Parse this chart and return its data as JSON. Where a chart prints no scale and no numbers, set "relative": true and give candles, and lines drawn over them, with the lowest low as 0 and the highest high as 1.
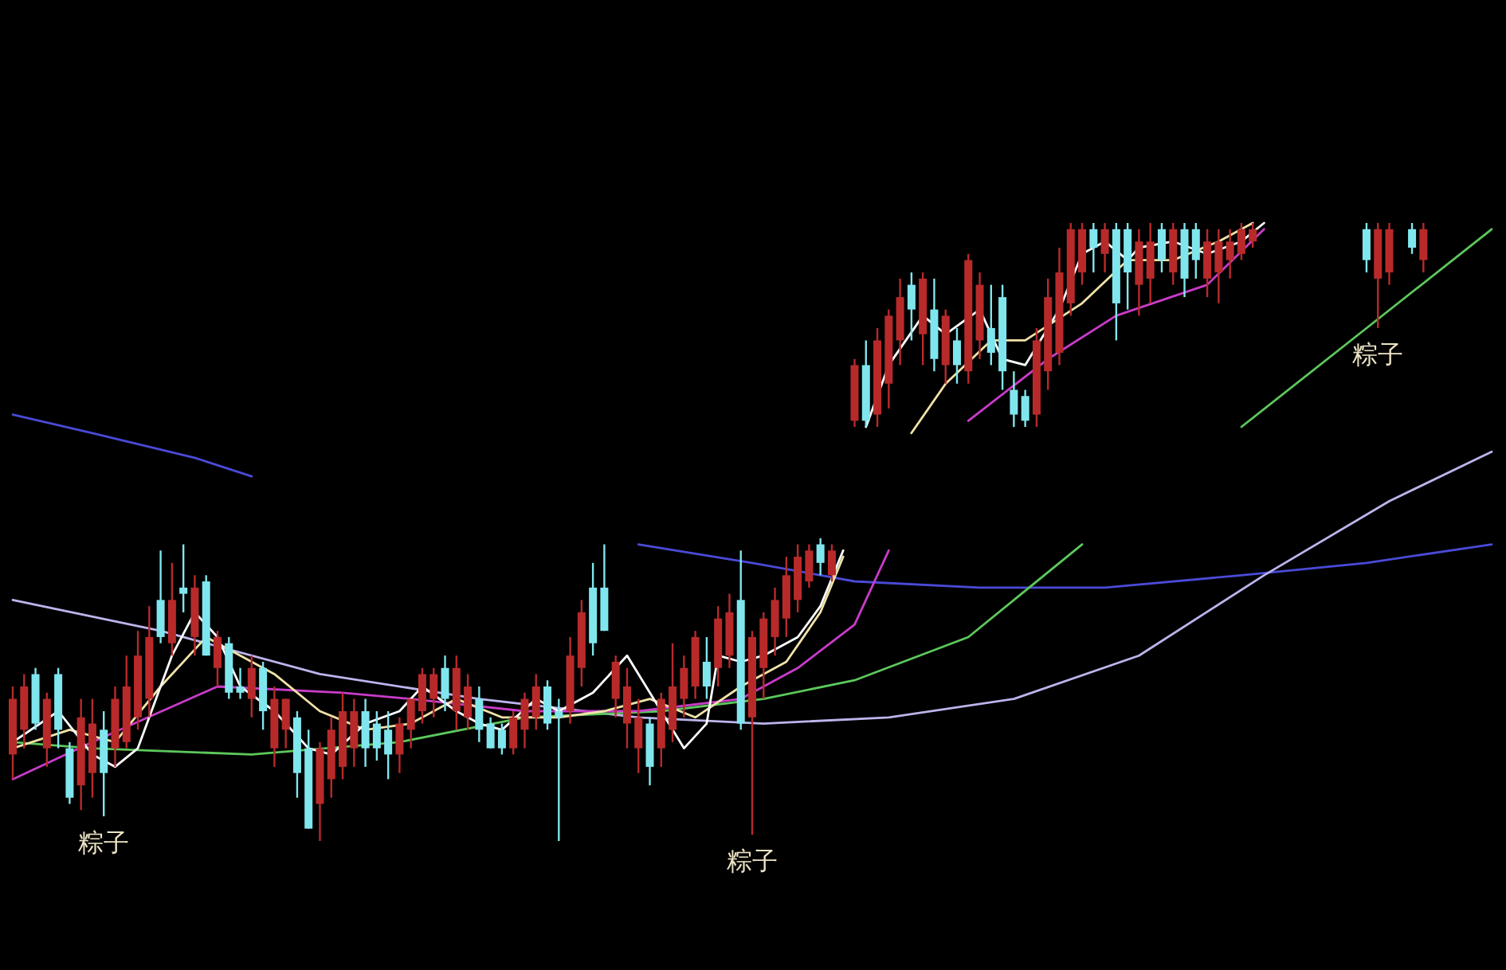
{
  "chart_data": {
    "type": "candlestick",
    "relative": true,
    "categories": [
      null,
      null,
      null,
      null,
      null,
      null,
      null,
      null,
      null,
      null,
      null,
      null,
      null,
      null,
      null,
      null,
      null,
      null,
      null,
      null,
      null,
      null,
      null,
      null,
      null,
      null,
      null,
      null,
      null,
      null,
      null,
      null,
      null,
      null,
      null,
      null,
      null,
      null,
      null,
      null,
      null,
      null,
      null,
      null,
      null,
      null,
      null,
      null,
      null,
      null,
      null,
      null,
      null,
      null,
      null,
      null,
      null,
      null,
      null,
      null,
      null,
      null,
      null,
      null,
      null,
      null,
      null,
      null,
      null,
      null,
      null,
      null,
      null,
      null,
      null,
      null,
      null,
      null,
      null,
      null,
      null,
      null,
      null,
      null,
      null,
      null,
      null,
      null,
      null,
      null,
      null,
      null,
      null,
      null,
      null,
      null,
      null,
      null,
      null,
      null,
      null,
      null,
      null,
      null,
      null,
      null,
      null,
      null,
      null,
      null,
      null,
      null,
      null,
      null,
      null,
      null,
      null,
      null,
      null,
      null,
      null,
      null,
      null,
      null,
      null,
      null,
      null,
      null,
      null,
      null,
      null
    ],
    "ohlc": [
      [
        0.14,
        0.25,
        0.1,
        0.23
      ],
      [
        0.18,
        0.27,
        0.15,
        0.25
      ],
      [
        0.27,
        0.28,
        0.18,
        0.19
      ],
      [
        0.15,
        0.24,
        0.12,
        0.23
      ],
      [
        0.27,
        0.28,
        0.15,
        0.18
      ],
      [
        0.15,
        0.16,
        0.06,
        0.07
      ],
      [
        0.09,
        0.23,
        0.05,
        0.2
      ],
      [
        0.11,
        0.23,
        0.07,
        0.19
      ],
      [
        0.18,
        0.21,
        0.04,
        0.11
      ],
      [
        0.15,
        0.25,
        0.12,
        0.23
      ],
      [
        0.16,
        0.3,
        0.15,
        0.25
      ],
      [
        0.2,
        0.34,
        0.18,
        0.3
      ],
      [
        0.23,
        0.38,
        0.2,
        0.33
      ],
      [
        0.39,
        0.47,
        0.32,
        0.33
      ],
      [
        0.32,
        0.45,
        0.3,
        0.39
      ],
      [
        0.41,
        0.48,
        0.37,
        0.4
      ],
      [
        0.33,
        0.43,
        0.3,
        0.41
      ],
      [
        0.42,
        0.43,
        0.3,
        0.3
      ],
      [
        0.28,
        0.34,
        0.25,
        0.33
      ],
      [
        0.32,
        0.33,
        0.23,
        0.24
      ],
      [
        0.25,
        0.28,
        0.23,
        0.24
      ],
      [
        0.23,
        0.3,
        0.2,
        0.28
      ],
      [
        0.28,
        0.29,
        0.18,
        0.21
      ],
      [
        0.15,
        0.25,
        0.12,
        0.23
      ],
      [
        0.18,
        0.23,
        0.15,
        0.23
      ],
      [
        0.2,
        0.21,
        0.07,
        0.11
      ],
      [
        0.15,
        0.18,
        0.02,
        0.02
      ],
      [
        0.06,
        0.16,
        0,
        0.15
      ],
      [
        0.1,
        0.2,
        0.07,
        0.18
      ],
      [
        0.12,
        0.24,
        0.1,
        0.21
      ],
      [
        0.15,
        0.23,
        0.12,
        0.21
      ],
      [
        0.21,
        0.23,
        0.12,
        0.15
      ],
      [
        0.19,
        0.21,
        0.13,
        0.15
      ],
      [
        0.18,
        0.21,
        0.1,
        0.14
      ],
      [
        0.14,
        0.2,
        0.11,
        0.19
      ],
      [
        0.18,
        0.23,
        0.15,
        0.23
      ],
      [
        0.21,
        0.28,
        0.19,
        0.27
      ],
      [
        0.23,
        0.28,
        0.2,
        0.27
      ],
      [
        0.28,
        0.3,
        0.21,
        0.23
      ],
      [
        0.21,
        0.3,
        0.18,
        0.28
      ],
      [
        0.2,
        0.27,
        0.18,
        0.25
      ],
      [
        0.23,
        0.25,
        0.16,
        0.18
      ],
      [
        0.19,
        0.2,
        0.15,
        0.15
      ],
      [
        0.18,
        0.19,
        0.14,
        0.15
      ],
      [
        0.15,
        0.21,
        0.14,
        0.2
      ],
      [
        0.18,
        0.24,
        0.15,
        0.23
      ],
      [
        0.2,
        0.27,
        0.18,
        0.25
      ],
      [
        0.25,
        0.26,
        0.18,
        0.19
      ],
      [
        0.21,
        0.23,
        0,
        0.2
      ],
      [
        0.21,
        0.33,
        0.19,
        0.3
      ],
      [
        0.28,
        0.39,
        0.25,
        0.37
      ],
      [
        0.41,
        0.45,
        0.3,
        0.32
      ],
      [
        0.41,
        0.48,
        0.34,
        0.34
      ],
      [
        0.23,
        0.3,
        0.2,
        0.29
      ],
      [
        0.19,
        0.28,
        0.15,
        0.25
      ],
      [
        0.15,
        0.23,
        0.11,
        0.2
      ],
      [
        0.19,
        0.2,
        0.09,
        0.12
      ],
      [
        0.15,
        0.24,
        0.12,
        0.23
      ],
      [
        0.18,
        0.32,
        0.16,
        0.25
      ],
      [
        0.23,
        0.3,
        0.2,
        0.28
      ],
      [
        0.25,
        0.34,
        0.23,
        0.33
      ],
      [
        0.29,
        0.33,
        0.23,
        0.25
      ],
      [
        0.28,
        0.38,
        0.25,
        0.36
      ],
      [
        0.3,
        0.4,
        0.28,
        0.37
      ],
      [
        0.39,
        0.47,
        0.18,
        0.19
      ],
      [
        0.2,
        0.34,
        0.01,
        0.33
      ],
      [
        0.28,
        0.37,
        0.23,
        0.36
      ],
      [
        0.33,
        0.41,
        0.3,
        0.39
      ],
      [
        0.36,
        0.46,
        0.33,
        0.43
      ],
      [
        0.39,
        0.48,
        0.37,
        0.46
      ],
      [
        0.42,
        0.48,
        0.41,
        0.47
      ],
      [
        0.48,
        0.49,
        0.43,
        0.45
      ],
      [
        0.43,
        0.48,
        0.42,
        0.47
      ],
      null,
      [
        0.68,
        0.78,
        0.67,
        0.77
      ],
      [
        0.77,
        0.81,
        0.67,
        0.68
      ],
      [
        0.69,
        0.83,
        0.67,
        0.81
      ],
      [
        0.74,
        0.86,
        0.7,
        0.85
      ],
      [
        0.81,
        0.91,
        0.77,
        0.88
      ],
      [
        0.9,
        0.92,
        0.81,
        0.86
      ],
      [
        0.82,
        0.92,
        0.77,
        0.91
      ],
      [
        0.86,
        0.91,
        0.76,
        0.78
      ],
      [
        0.77,
        0.86,
        0.74,
        0.85
      ],
      [
        0.81,
        0.83,
        0.74,
        0.77
      ],
      [
        0.76,
        0.95,
        0.74,
        0.94
      ],
      [
        0.81,
        0.92,
        0.78,
        0.9
      ],
      [
        0.83,
        0.9,
        0.77,
        0.79
      ],
      [
        0.88,
        0.9,
        0.73,
        0.76
      ],
      [
        0.73,
        0.76,
        0.67,
        0.69
      ],
      [
        0.72,
        0.73,
        0.67,
        0.68
      ],
      [
        0.69,
        0.83,
        0.67,
        0.81
      ],
      [
        0.76,
        0.91,
        0.73,
        0.88
      ],
      [
        0.79,
        0.96,
        0.77,
        0.92
      ],
      [
        0.87,
        1,
        0.85,
        0.99
      ],
      [
        0.92,
        1,
        0.9,
        0.99
      ],
      [
        0.99,
        1,
        0.92,
        0.96
      ],
      [
        0.95,
        1,
        0.92,
        0.99
      ],
      [
        0.99,
        1,
        0.81,
        0.87
      ],
      [
        0.99,
        1,
        0.86,
        0.92
      ],
      [
        0.9,
        0.99,
        0.85,
        0.97
      ],
      [
        0.91,
        1,
        0.87,
        0.97
      ],
      [
        0.99,
        1,
        0.92,
        0.94
      ],
      [
        0.92,
        1,
        0.9,
        0.99
      ],
      [
        0.99,
        1,
        0.88,
        0.91
      ],
      [
        0.99,
        1,
        0.91,
        0.94
      ],
      [
        0.91,
        0.99,
        0.88,
        0.97
      ],
      [
        0.92,
        0.99,
        0.87,
        0.97
      ],
      [
        0.94,
        0.99,
        0.91,
        0.97
      ],
      [
        0.95,
        1,
        0.94,
        0.99
      ],
      [
        0.97,
        1,
        0.96,
        0.99
      ],
      null,
      null,
      null,
      null,
      null,
      null,
      null,
      null,
      null,
      [
        0.99,
        1,
        0.92,
        0.94
      ],
      [
        0.91,
        1,
        0.83,
        0.99
      ],
      [
        0.92,
        1,
        0.9,
        0.99
      ],
      null,
      [
        0.99,
        1,
        0.95,
        0.96
      ],
      [
        0.94,
        1,
        0.92,
        0.99
      ],
      null,
      null,
      null,
      null,
      null,
      null
    ],
    "colors": [
      "#b82a2a",
      "#b82a2a",
      "#80e6ee",
      "#b82a2a",
      "#80e6ee",
      "#80e6ee",
      "#b82a2a",
      "#b82a2a",
      "#80e6ee",
      "#b82a2a",
      "#b82a2a",
      "#b82a2a",
      "#b82a2a",
      "#80e6ee",
      "#b82a2a",
      "#80e6ee",
      "#b82a2a",
      "#80e6ee",
      "#b82a2a",
      "#80e6ee",
      "#80e6ee",
      "#b82a2a",
      "#80e6ee",
      "#b82a2a",
      "#b82a2a",
      "#80e6ee",
      "#80e6ee",
      "#b82a2a",
      "#b82a2a",
      "#b82a2a",
      "#b82a2a",
      "#80e6ee",
      "#80e6ee",
      "#80e6ee",
      "#b82a2a",
      "#b82a2a",
      "#b82a2a",
      "#b82a2a",
      "#80e6ee",
      "#b82a2a",
      "#b82a2a",
      "#80e6ee",
      "#80e6ee",
      "#80e6ee",
      "#b82a2a",
      "#b82a2a",
      "#b82a2a",
      "#80e6ee",
      "#80e6ee",
      "#b82a2a",
      "#b82a2a",
      "#80e6ee",
      "#80e6ee",
      "#b82a2a",
      "#b82a2a",
      "#b82a2a",
      "#80e6ee",
      "#b82a2a",
      "#b82a2a",
      "#b82a2a",
      "#b82a2a",
      "#80e6ee",
      "#b82a2a",
      "#b82a2a",
      "#80e6ee",
      "#b82a2a",
      "#b82a2a",
      "#b82a2a",
      "#b82a2a",
      "#b82a2a",
      "#b82a2a",
      "#80e6ee",
      "#b82a2a",
      null,
      "#b82a2a",
      "#80e6ee",
      "#b82a2a",
      "#b82a2a",
      "#b82a2a",
      "#80e6ee",
      "#b82a2a",
      "#80e6ee",
      "#b82a2a",
      "#80e6ee",
      "#b82a2a",
      "#b82a2a",
      "#80e6ee",
      "#80e6ee",
      "#80e6ee",
      "#80e6ee",
      "#b82a2a",
      "#b82a2a",
      "#b82a2a",
      "#b82a2a",
      "#b82a2a",
      "#80e6ee",
      "#b82a2a",
      "#80e6ee",
      "#80e6ee",
      "#b82a2a",
      "#b82a2a",
      "#80e6ee",
      "#b82a2a",
      "#80e6ee",
      "#80e6ee",
      "#b82a2a",
      "#b82a2a",
      "#b82a2a",
      "#b82a2a",
      "#b82a2a",
      null,
      null,
      null,
      null,
      null,
      null,
      null,
      null,
      null,
      "#80e6ee",
      "#b82a2a",
      "#b82a2a",
      null,
      "#80e6ee",
      "#b82a2a",
      null,
      null,
      null,
      null,
      null,
      null
    ],
    "series": [
      {
        "type": "line",
        "color": "#4a4ad8",
        "values": [
          0.69,
          null,
          null,
          null,
          null,
          null,
          null,
          0.66,
          null,
          null,
          null,
          null,
          null,
          null,
          null,
          null,
          0.62,
          null,
          null,
          null,
          null,
          0.59,
          null,
          null,
          null,
          null,
          null,
          null,
          null,
          null,
          null,
          null,
          null,
          null,
          null,
          null,
          null,
          null,
          null,
          null,
          null,
          null,
          null,
          null,
          null,
          null,
          null,
          null,
          null,
          null,
          null,
          null,
          null,
          null,
          null,
          null,
          null,
          null,
          null,
          null,
          null,
          null,
          null,
          null,
          null,
          null,
          null,
          null,
          null,
          null,
          null,
          null,
          null,
          null,
          null,
          null,
          null,
          null,
          null,
          null,
          null,
          null,
          null,
          null,
          null,
          null,
          null,
          null,
          null,
          null,
          null,
          null,
          null,
          null,
          null,
          null,
          null,
          null,
          null,
          null,
          null,
          null,
          null,
          null,
          null,
          null,
          null,
          null,
          null,
          null,
          null,
          null,
          null,
          null,
          null,
          null,
          null,
          null,
          null,
          null,
          null,
          null,
          null,
          null,
          null,
          null,
          null,
          null,
          null,
          null,
          null
        ]
      },
      {
        "type": "line",
        "color": "#4a4ad8",
        "values": [
          null,
          null,
          null,
          null,
          null,
          null,
          null,
          null,
          null,
          null,
          null,
          null,
          null,
          null,
          null,
          null,
          null,
          null,
          null,
          null,
          null,
          null,
          null,
          null,
          null,
          null,
          null,
          null,
          null,
          null,
          null,
          null,
          null,
          null,
          null,
          null,
          null,
          null,
          null,
          null,
          null,
          null,
          null,
          null,
          null,
          null,
          null,
          null,
          null,
          null,
          null,
          null,
          null,
          null,
          null,
          0.48,
          null,
          null,
          null,
          null,
          null,
          null,
          null,
          null,
          null,
          0.45,
          null,
          null,
          null,
          null,
          null,
          null,
          null,
          null,
          0.42,
          null,
          null,
          null,
          null,
          null,
          null,
          null,
          null,
          null,
          null,
          0.41,
          null,
          null,
          null,
          null,
          null,
          null,
          null,
          null,
          null,
          null,
          0.41,
          null,
          null,
          null,
          null,
          null,
          null,
          null,
          null,
          null,
          null,
          null,
          0.43,
          null,
          null,
          null,
          null,
          null,
          null,
          null,
          null,
          null,
          null,
          0.45,
          null,
          null,
          null,
          null,
          null,
          null,
          null,
          null,
          null,
          null,
          0.48
        ]
      },
      {
        "type": "line",
        "color": "#bdb4ec",
        "values": [
          0.39,
          null,
          null,
          null,
          null,
          null,
          null,
          null,
          null,
          null,
          null,
          null,
          null,
          0.34,
          null,
          null,
          null,
          null,
          null,
          null,
          null,
          null,
          null,
          null,
          null,
          null,
          null,
          0.27,
          null,
          null,
          null,
          null,
          null,
          null,
          null,
          null,
          null,
          null,
          null,
          null,
          null,
          0.23,
          null,
          null,
          null,
          null,
          null,
          null,
          null,
          null,
          null,
          null,
          null,
          null,
          null,
          0.2,
          null,
          null,
          null,
          null,
          null,
          null,
          null,
          null,
          null,
          null,
          0.19,
          null,
          null,
          null,
          null,
          null,
          null,
          null,
          null,
          null,
          null,
          0.2,
          null,
          null,
          null,
          null,
          null,
          null,
          null,
          null,
          null,
          null,
          0.23,
          null,
          null,
          null,
          null,
          null,
          null,
          null,
          null,
          null,
          null,
          0.3,
          null,
          null,
          null,
          null,
          null,
          null,
          null,
          null,
          null,
          null,
          0.43,
          null,
          null,
          null,
          null,
          null,
          null,
          null,
          null,
          null,
          null,
          0.55,
          null,
          null,
          null,
          null,
          null,
          null,
          null,
          null,
          0.63
        ]
      },
      {
        "type": "line",
        "color": "#5cc85c",
        "values": [
          0.16,
          null,
          null,
          null,
          null,
          null,
          null,
          0.15,
          null,
          null,
          null,
          null,
          null,
          null,
          null,
          null,
          null,
          null,
          null,
          null,
          null,
          0.14,
          null,
          null,
          null,
          null,
          null,
          null,
          null,
          null,
          null,
          null,
          null,
          null,
          0.16,
          null,
          null,
          null,
          null,
          null,
          null,
          null,
          null,
          null,
          null,
          0.2,
          null,
          null,
          null,
          null,
          null,
          null,
          null,
          null,
          null,
          null,
          null,
          0.21,
          null,
          null,
          null,
          null,
          null,
          null,
          null,
          null,
          0.23,
          null,
          null,
          null,
          null,
          null,
          null,
          null,
          0.26,
          null,
          null,
          null,
          null,
          null,
          null,
          null,
          null,
          null,
          0.33,
          null,
          null,
          null,
          null,
          null,
          null,
          null,
          null,
          null,
          0.48,
          null,
          null,
          null,
          null,
          null,
          null,
          null,
          null,
          null,
          null,
          null,
          null,
          null,
          null,
          null,
          null,
          null,
          null,
          null,
          null,
          null,
          null,
          null,
          null,
          null,
          null,
          null,
          null,
          null,
          null,
          null,
          null,
          null,
          null,
          null,
          null
        ]
      },
      {
        "type": "line",
        "color": "#5cc85c",
        "values": [
          null,
          null,
          null,
          null,
          null,
          null,
          null,
          null,
          null,
          null,
          null,
          null,
          null,
          null,
          null,
          null,
          null,
          null,
          null,
          null,
          null,
          null,
          null,
          null,
          null,
          null,
          null,
          null,
          null,
          null,
          null,
          null,
          null,
          null,
          null,
          null,
          null,
          null,
          null,
          null,
          null,
          null,
          null,
          null,
          null,
          null,
          null,
          null,
          null,
          null,
          null,
          null,
          null,
          null,
          null,
          null,
          null,
          null,
          null,
          null,
          null,
          null,
          null,
          null,
          null,
          null,
          null,
          null,
          null,
          null,
          null,
          null,
          null,
          null,
          null,
          null,
          null,
          null,
          null,
          null,
          null,
          null,
          null,
          null,
          null,
          null,
          null,
          null,
          null,
          null,
          null,
          null,
          null,
          null,
          null,
          null,
          null,
          null,
          null,
          null,
          null,
          null,
          null,
          null,
          null,
          null,
          null,
          null,
          0.67,
          null,
          null,
          null,
          null,
          null,
          null,
          null,
          null,
          null,
          null,
          0.83,
          null,
          null,
          null,
          null,
          null,
          null,
          null,
          null,
          null,
          null,
          0.99
        ]
      },
      {
        "type": "line",
        "color": "#c83cc8",
        "values": [
          0.1,
          null,
          null,
          null,
          null,
          null,
          null,
          0.16,
          null,
          null,
          null,
          null,
          null,
          null,
          null,
          null,
          null,
          null,
          0.25,
          null,
          null,
          null,
          null,
          null,
          null,
          null,
          null,
          null,
          null,
          0.24,
          null,
          null,
          null,
          null,
          null,
          0.23,
          null,
          null,
          null,
          null,
          null,
          null,
          null,
          null,
          null,
          0.21,
          null,
          null,
          null,
          null,
          null,
          null,
          null,
          null,
          null,
          0.21,
          null,
          null,
          null,
          null,
          null,
          null,
          null,
          null,
          0.23,
          null,
          null,
          null,
          null,
          0.28,
          null,
          null,
          null,
          null,
          0.35,
          null,
          null,
          0.47,
          null,
          null,
          null,
          null,
          null,
          null,
          null,
          null,
          null,
          null,
          null,
          null,
          null,
          null,
          null,
          null,
          null,
          null,
          null,
          null,
          null,
          null,
          null,
          null,
          null,
          null,
          null,
          null,
          null,
          null,
          null,
          null,
          null,
          null,
          null,
          null,
          null,
          null,
          null,
          null,
          null,
          null,
          null,
          null,
          null,
          null,
          null,
          null,
          null,
          null,
          null,
          null,
          null
        ]
      },
      {
        "type": "line",
        "color": "#c83cc8",
        "values": [
          null,
          null,
          null,
          null,
          null,
          null,
          null,
          null,
          null,
          null,
          null,
          null,
          null,
          null,
          null,
          null,
          null,
          null,
          null,
          null,
          null,
          null,
          null,
          null,
          null,
          null,
          null,
          null,
          null,
          null,
          null,
          null,
          null,
          null,
          null,
          null,
          null,
          null,
          null,
          null,
          null,
          null,
          null,
          null,
          null,
          null,
          null,
          null,
          null,
          null,
          null,
          null,
          null,
          null,
          null,
          null,
          null,
          null,
          null,
          null,
          null,
          null,
          null,
          null,
          null,
          null,
          null,
          null,
          null,
          null,
          null,
          null,
          null,
          null,
          null,
          null,
          null,
          null,
          null,
          null,
          null,
          null,
          null,
          null,
          0.68,
          null,
          null,
          null,
          null,
          null,
          null,
          0.78,
          null,
          null,
          null,
          null,
          null,
          0.85,
          null,
          null,
          null,
          null,
          null,
          null,
          null,
          0.9,
          null,
          null,
          null,
          null,
          0.99,
          null,
          null,
          null,
          null,
          null,
          null,
          null,
          null,
          null,
          null,
          null,
          null,
          null,
          null,
          null,
          null,
          null,
          null,
          null,
          null
        ]
      },
      {
        "type": "line",
        "color": "#f0e2a8",
        "values": [
          0.15,
          null,
          null,
          null,
          null,
          0.18,
          null,
          null,
          null,
          0.16,
          null,
          null,
          null,
          0.25,
          null,
          null,
          null,
          0.33,
          null,
          null,
          0.3,
          null,
          null,
          0.27,
          null,
          null,
          null,
          0.21,
          null,
          null,
          null,
          0.18,
          null,
          null,
          null,
          0.19,
          null,
          null,
          null,
          0.23,
          null,
          null,
          null,
          0.2,
          null,
          null,
          null,
          null,
          0.2,
          null,
          null,
          null,
          0.21,
          null,
          null,
          null,
          0.23,
          null,
          null,
          null,
          0.2,
          null,
          null,
          null,
          0.25,
          null,
          null,
          null,
          0.29,
          null,
          null,
          0.37,
          null,
          0.46,
          null,
          null,
          null,
          null,
          null,
          null,
          null,
          null,
          null,
          null,
          null,
          null,
          null,
          null,
          null,
          null,
          null,
          null,
          null,
          null,
          null,
          null,
          null,
          null,
          null,
          null,
          null,
          null,
          null,
          null,
          null,
          null,
          null,
          null,
          null,
          null,
          null,
          null,
          null,
          null,
          null,
          null,
          null,
          null,
          null,
          null,
          null,
          null,
          null,
          null,
          null,
          null,
          null,
          null,
          null,
          null,
          null
        ]
      },
      {
        "type": "line",
        "color": "#f0e2a8",
        "values": [
          null,
          null,
          null,
          null,
          null,
          null,
          null,
          null,
          null,
          null,
          null,
          null,
          null,
          null,
          null,
          null,
          null,
          null,
          null,
          null,
          null,
          null,
          null,
          null,
          null,
          null,
          null,
          null,
          null,
          null,
          null,
          null,
          null,
          null,
          null,
          null,
          null,
          null,
          null,
          null,
          null,
          null,
          null,
          null,
          null,
          null,
          null,
          null,
          null,
          null,
          null,
          null,
          null,
          null,
          null,
          null,
          null,
          null,
          null,
          null,
          null,
          null,
          null,
          null,
          null,
          null,
          null,
          null,
          null,
          null,
          null,
          null,
          null,
          null,
          null,
          null,
          null,
          null,
          null,
          0.66,
          null,
          null,
          0.74,
          null,
          null,
          null,
          0.81,
          null,
          null,
          0.81,
          null,
          null,
          null,
          null,
          0.87,
          null,
          null,
          null,
          0.94,
          null,
          null,
          null,
          0.94,
          null,
          null,
          null,
          0.97,
          null,
          null,
          1,
          null,
          null,
          null,
          null,
          null,
          null,
          null,
          null,
          null,
          null,
          null,
          null,
          null,
          null,
          null,
          null,
          null,
          null,
          null,
          null,
          null
        ]
      },
      {
        "type": "line",
        "color": "#ffffff",
        "values": [
          0.16,
          null,
          null,
          null,
          0.21,
          null,
          null,
          0.14,
          null,
          0.12,
          null,
          0.15,
          null,
          null,
          0.3,
          null,
          0.37,
          null,
          0.33,
          null,
          0.25,
          null,
          null,
          0.21,
          null,
          null,
          0.15,
          null,
          0.14,
          null,
          null,
          0.19,
          null,
          null,
          0.21,
          null,
          0.25,
          null,
          null,
          0.21,
          null,
          0.19,
          null,
          0.18,
          null,
          null,
          0.23,
          null,
          0.21,
          null,
          null,
          0.24,
          null,
          null,
          0.3,
          null,
          null,
          0.21,
          null,
          0.15,
          null,
          0.19,
          0.3,
          null,
          0.29,
          null,
          0.3,
          null,
          null,
          0.33,
          null,
          0.38,
          null,
          0.47,
          null,
          null,
          null,
          null,
          null,
          null,
          null,
          null,
          null,
          null,
          null,
          null,
          null,
          null,
          null,
          null,
          null,
          null,
          null,
          null,
          null,
          null,
          null,
          null,
          null,
          null,
          null,
          null,
          null,
          null,
          null,
          null,
          null,
          null,
          null,
          null,
          null,
          null,
          null,
          null,
          null,
          null,
          null,
          null,
          null,
          null,
          null,
          null,
          null,
          null,
          null,
          null,
          null,
          null,
          null,
          null,
          null
        ]
      },
      {
        "type": "line",
        "color": "#ffffff",
        "values": [
          null,
          null,
          null,
          null,
          null,
          null,
          null,
          null,
          null,
          null,
          null,
          null,
          null,
          null,
          null,
          null,
          null,
          null,
          null,
          null,
          null,
          null,
          null,
          null,
          null,
          null,
          null,
          null,
          null,
          null,
          null,
          null,
          null,
          null,
          null,
          null,
          null,
          null,
          null,
          null,
          null,
          null,
          null,
          null,
          null,
          null,
          null,
          null,
          null,
          null,
          null,
          null,
          null,
          null,
          null,
          null,
          null,
          null,
          null,
          null,
          null,
          null,
          null,
          null,
          null,
          null,
          null,
          null,
          null,
          null,
          null,
          null,
          null,
          null,
          null,
          0.67,
          null,
          0.77,
          null,
          null,
          0.85,
          null,
          0.82,
          null,
          null,
          0.86,
          null,
          0.78,
          null,
          0.77,
          null,
          null,
          0.86,
          null,
          0.95,
          null,
          0.97,
          null,
          0.94,
          0.96,
          null,
          null,
          0.97,
          null,
          null,
          0.95,
          null,
          null,
          0.97,
          null,
          1,
          null,
          null,
          null,
          null,
          null,
          null,
          null,
          null,
          null,
          null,
          null,
          null,
          null,
          null,
          null,
          null,
          null,
          null,
          null,
          null
        ]
      }
    ],
    "annotations": [
      {
        "text": "粽子",
        "y": 0.04
      },
      {
        "text": "粽子",
        "y": 0.01
      },
      {
        "text": "粽子",
        "y": 0.83
      }
    ]
  }
}
